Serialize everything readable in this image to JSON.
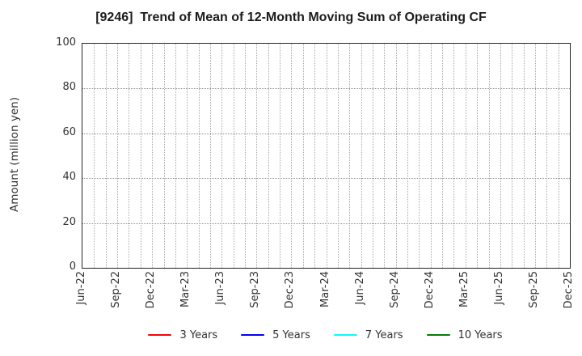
{
  "chart_data": {
    "type": "line",
    "title": "[9246]  Trend of Mean of 12-Month Moving Sum of Operating CF",
    "xlabel": "",
    "ylabel": "Amount (million yen)",
    "ylim": [
      0,
      100
    ],
    "y_ticks": [
      0,
      20,
      40,
      60,
      80,
      100
    ],
    "x_ticklabels": [
      "Jun-22",
      "Sep-22",
      "Dec-22",
      "Mar-23",
      "Jun-23",
      "Sep-23",
      "Dec-23",
      "Mar-24",
      "Jun-24",
      "Sep-24",
      "Dec-24",
      "Mar-25",
      "Jun-25",
      "Sep-25",
      "Dec-25"
    ],
    "x_tick_interval_months": 3,
    "x_total_months": 42,
    "grid": true,
    "grid_style": "dotted",
    "legend_position": "bottom-center",
    "series": [
      {
        "name": "3 Years",
        "color": "#ff0000",
        "values": []
      },
      {
        "name": "5 Years",
        "color": "#0000ff",
        "values": []
      },
      {
        "name": "7 Years",
        "color": "#00ffff",
        "values": []
      },
      {
        "name": "10 Years",
        "color": "#008000",
        "values": []
      }
    ]
  }
}
